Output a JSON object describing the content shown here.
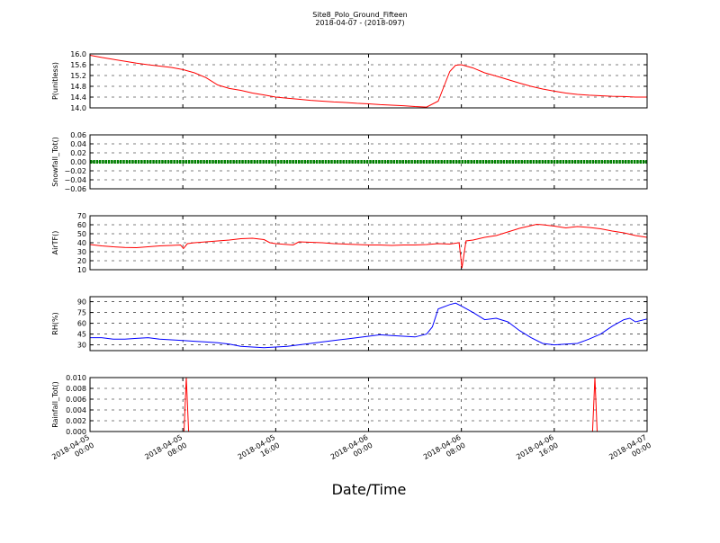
{
  "figure": {
    "title_line1": "Site8_Polo_Ground_Fifteen",
    "title_line2": "2018-04-07 - (2018-097)",
    "xlabel": "Date/Time"
  },
  "chart_data": {
    "type": "line",
    "x_range": [
      "2018-04-05 00:00",
      "2018-04-07 00:00"
    ],
    "x_ticks": [
      {
        "line1": "2018-04-05",
        "line2": "00:00",
        "hours": 0
      },
      {
        "line1": "2018-04-05",
        "line2": "08:00",
        "hours": 8
      },
      {
        "line1": "2018-04-05",
        "line2": "16:00",
        "hours": 16
      },
      {
        "line1": "2018-04-06",
        "line2": "00:00",
        "hours": 24
      },
      {
        "line1": "2018-04-06",
        "line2": "08:00",
        "hours": 32
      },
      {
        "line1": "2018-04-06",
        "line2": "16:00",
        "hours": 40
      },
      {
        "line1": "2018-04-07",
        "line2": "00:00",
        "hours": 48
      }
    ],
    "grid": true,
    "panels": [
      {
        "ylabel": "P(unitless)",
        "ylim": [
          14.0,
          16.0
        ],
        "yticks": [
          "14.0",
          "14.4",
          "14.8",
          "15.2",
          "15.6",
          "16.0"
        ],
        "color": "#ff0000",
        "style": "line",
        "points": [
          [
            0,
            15.95
          ],
          [
            1,
            15.87
          ],
          [
            2,
            15.8
          ],
          [
            3,
            15.73
          ],
          [
            4,
            15.66
          ],
          [
            5,
            15.6
          ],
          [
            6,
            15.55
          ],
          [
            7,
            15.5
          ],
          [
            8,
            15.42
          ],
          [
            9,
            15.3
          ],
          [
            10,
            15.12
          ],
          [
            11,
            14.85
          ],
          [
            12,
            14.72
          ],
          [
            13,
            14.65
          ],
          [
            14,
            14.55
          ],
          [
            15,
            14.48
          ],
          [
            16,
            14.4
          ],
          [
            17,
            14.36
          ],
          [
            18,
            14.32
          ],
          [
            19,
            14.28
          ],
          [
            20,
            14.25
          ],
          [
            21,
            14.22
          ],
          [
            22,
            14.2
          ],
          [
            23,
            14.17
          ],
          [
            24,
            14.15
          ],
          [
            25,
            14.12
          ],
          [
            26,
            14.1
          ],
          [
            27,
            14.08
          ],
          [
            28,
            14.05
          ],
          [
            29,
            14.03
          ],
          [
            30,
            14.25
          ],
          [
            30.5,
            14.8
          ],
          [
            31,
            15.35
          ],
          [
            31.5,
            15.58
          ],
          [
            32,
            15.6
          ],
          [
            33,
            15.48
          ],
          [
            34,
            15.3
          ],
          [
            35,
            15.18
          ],
          [
            36,
            15.05
          ],
          [
            37,
            14.92
          ],
          [
            38,
            14.8
          ],
          [
            39,
            14.7
          ],
          [
            40,
            14.62
          ],
          [
            41,
            14.55
          ],
          [
            42,
            14.5
          ],
          [
            43,
            14.47
          ],
          [
            44,
            14.45
          ],
          [
            45,
            14.43
          ],
          [
            46,
            14.42
          ],
          [
            47,
            14.4
          ],
          [
            48,
            14.4
          ]
        ]
      },
      {
        "ylabel": "Snowfall_Tot()",
        "ylim": [
          -0.06,
          0.06
        ],
        "yticks": [
          "−0.06",
          "−0.04",
          "−0.02",
          "0.00",
          "0.02",
          "0.04",
          "0.06"
        ],
        "color": "#008000",
        "style": "markers",
        "points": [
          [
            0,
            0
          ],
          [
            48,
            0
          ]
        ]
      },
      {
        "ylabel": "AirTF()",
        "ylim": [
          10,
          70
        ],
        "yticks": [
          "10",
          "20",
          "30",
          "40",
          "50",
          "60",
          "70"
        ],
        "color": "#ff0000",
        "style": "line",
        "points": [
          [
            0,
            38
          ],
          [
            1,
            36.5
          ],
          [
            2,
            35.5
          ],
          [
            3,
            34.8
          ],
          [
            4,
            34.5
          ],
          [
            5,
            35.5
          ],
          [
            6,
            36.5
          ],
          [
            7,
            37
          ],
          [
            7.8,
            37.5
          ],
          [
            8.05,
            33.5
          ],
          [
            8.4,
            39
          ],
          [
            9,
            40
          ],
          [
            10,
            41
          ],
          [
            11,
            42
          ],
          [
            12,
            43
          ],
          [
            13,
            44.5
          ],
          [
            14,
            45
          ],
          [
            15,
            43.5
          ],
          [
            15.5,
            40
          ],
          [
            16,
            39
          ],
          [
            17,
            38
          ],
          [
            17.5,
            37.5
          ],
          [
            18,
            41
          ],
          [
            19,
            40.5
          ],
          [
            20,
            40
          ],
          [
            21,
            39
          ],
          [
            22,
            38.5
          ],
          [
            23,
            38
          ],
          [
            24,
            37.5
          ],
          [
            25,
            37.5
          ],
          [
            26,
            37
          ],
          [
            27,
            37.5
          ],
          [
            28,
            37.5
          ],
          [
            29,
            38
          ],
          [
            30,
            39
          ],
          [
            31,
            38.5
          ],
          [
            31.8,
            40
          ],
          [
            32.05,
            12
          ],
          [
            32.4,
            42
          ],
          [
            33,
            43
          ],
          [
            34,
            46
          ],
          [
            35,
            48
          ],
          [
            36,
            52
          ],
          [
            37,
            56
          ],
          [
            38,
            59
          ],
          [
            38.5,
            60.5
          ],
          [
            39,
            60
          ],
          [
            40,
            58.5
          ],
          [
            41,
            56.5
          ],
          [
            42,
            58
          ],
          [
            43,
            57
          ],
          [
            44,
            55.5
          ],
          [
            45,
            53
          ],
          [
            46,
            51
          ],
          [
            47,
            48
          ],
          [
            48,
            46
          ]
        ]
      },
      {
        "ylabel": "RH(%)",
        "ylim": [
          22,
          97
        ],
        "yticks": [
          "30",
          "45",
          "60",
          "75",
          "90"
        ],
        "color": "#0000ff",
        "style": "line",
        "points": [
          [
            0,
            40
          ],
          [
            1,
            40
          ],
          [
            2,
            38
          ],
          [
            3,
            38
          ],
          [
            4,
            39
          ],
          [
            5,
            40
          ],
          [
            6,
            38
          ],
          [
            7,
            37
          ],
          [
            8,
            36
          ],
          [
            9,
            35
          ],
          [
            10,
            34
          ],
          [
            11,
            33
          ],
          [
            12,
            31
          ],
          [
            13,
            28
          ],
          [
            14,
            27
          ],
          [
            15,
            26
          ],
          [
            16,
            27
          ],
          [
            17,
            28
          ],
          [
            18,
            30
          ],
          [
            19,
            32
          ],
          [
            20,
            34
          ],
          [
            21,
            36
          ],
          [
            22,
            38
          ],
          [
            23,
            40
          ],
          [
            24,
            42
          ],
          [
            25,
            44
          ],
          [
            26,
            43
          ],
          [
            27,
            42
          ],
          [
            28,
            41
          ],
          [
            29,
            45
          ],
          [
            29.5,
            55
          ],
          [
            30,
            80
          ],
          [
            31,
            86
          ],
          [
            31.5,
            88
          ],
          [
            32,
            84
          ],
          [
            33,
            75
          ],
          [
            34,
            65
          ],
          [
            35,
            67
          ],
          [
            36,
            62
          ],
          [
            37,
            50
          ],
          [
            38,
            40
          ],
          [
            39,
            32
          ],
          [
            40,
            30
          ],
          [
            41,
            31
          ],
          [
            42,
            32
          ],
          [
            43,
            38
          ],
          [
            44,
            45
          ],
          [
            45,
            56
          ],
          [
            46,
            65
          ],
          [
            46.5,
            67
          ],
          [
            47,
            62
          ],
          [
            48,
            66
          ]
        ]
      },
      {
        "ylabel": "Rainfall_Tot()",
        "ylim": [
          0.0,
          0.01
        ],
        "yticks": [
          "0.000",
          "0.002",
          "0.004",
          "0.006",
          "0.008",
          "0.010"
        ],
        "color": "#ff0000",
        "style": "line",
        "points": [
          [
            0,
            0
          ],
          [
            8.1,
            0
          ],
          [
            8.3,
            0.01
          ],
          [
            8.5,
            0
          ],
          [
            43.3,
            0
          ],
          [
            43.5,
            0.01
          ],
          [
            43.7,
            0
          ],
          [
            48,
            0
          ]
        ]
      }
    ]
  }
}
